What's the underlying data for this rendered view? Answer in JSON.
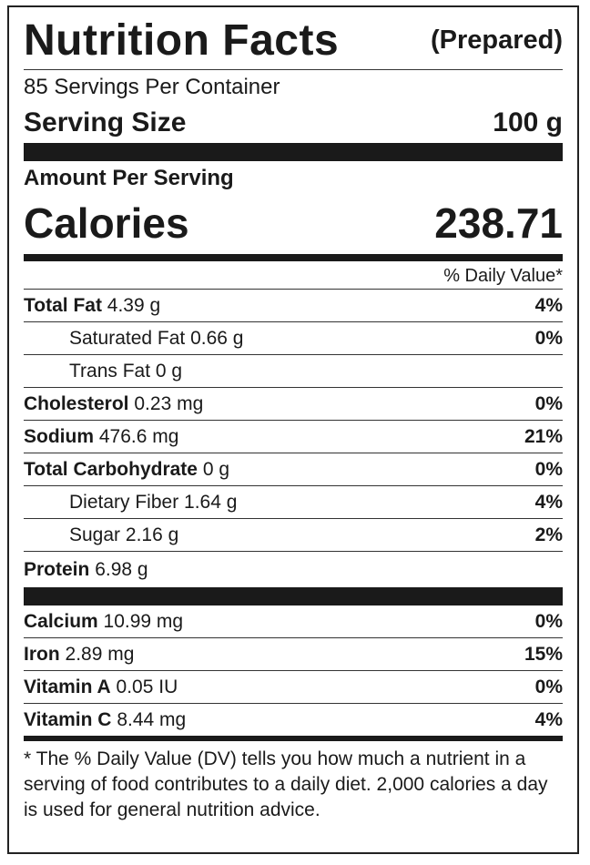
{
  "header": {
    "title": "Nutrition Facts",
    "qualifier": "(Prepared)"
  },
  "servings": "85 Servings Per Container",
  "serving_size": {
    "label": "Serving Size",
    "value": "100 g"
  },
  "amount_per_serving": "Amount Per Serving",
  "calories": {
    "label": "Calories",
    "value": "238.71"
  },
  "dv_header": "% Daily Value*",
  "nutrients": [
    {
      "name": "Total Fat",
      "amount": "4.39 g",
      "dv": "4%",
      "indent": false
    },
    {
      "name": "Saturated Fat",
      "amount": "0.66 g",
      "dv": "0%",
      "indent": true
    },
    {
      "name": "Trans Fat",
      "amount": "0 g",
      "dv": null,
      "indent": true
    },
    {
      "name": "Cholesterol",
      "amount": "0.23 mg",
      "dv": "0%",
      "indent": false
    },
    {
      "name": "Sodium",
      "amount": "476.6 mg",
      "dv": "21%",
      "indent": false
    },
    {
      "name": "Total Carbohydrate",
      "amount": "0 g",
      "dv": "0%",
      "indent": false
    },
    {
      "name": "Dietary Fiber",
      "amount": "1.64 g",
      "dv": "4%",
      "indent": true
    },
    {
      "name": "Sugar",
      "amount": "2.16 g",
      "dv": "2%",
      "indent": true
    },
    {
      "name": "Protein",
      "amount": "6.98 g",
      "dv": null,
      "indent": false
    }
  ],
  "minerals": [
    {
      "name": "Calcium",
      "amount": "10.99 mg",
      "dv": "0%"
    },
    {
      "name": "Iron",
      "amount": "2.89 mg",
      "dv": "15%"
    },
    {
      "name": "Vitamin A",
      "amount": "0.05 IU",
      "dv": "0%"
    },
    {
      "name": "Vitamin C",
      "amount": "8.44 mg",
      "dv": "4%"
    }
  ],
  "footnote": "* The % Daily Value (DV) tells you how much a nutrient in a serving of food contributes to a daily diet. 2,000 calories a day is used for general nutrition advice."
}
